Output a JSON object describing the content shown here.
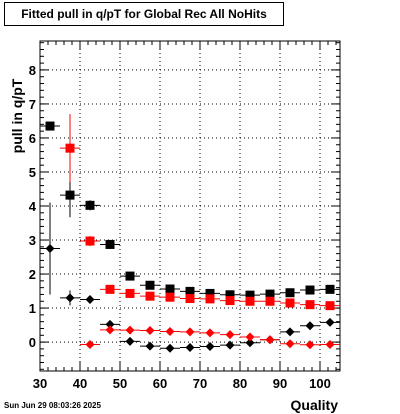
{
  "chart_data": {
    "type": "scatter",
    "title": "Fitted pull in q/pT for Global Rec All NoHits",
    "xlabel": "Quality",
    "ylabel": "pull in q/pT",
    "xlim": [
      30,
      105
    ],
    "ylim": [
      -0.85,
      8.85
    ],
    "xticks": [
      30,
      40,
      50,
      60,
      70,
      80,
      90,
      100
    ],
    "yticks": [
      0,
      1,
      2,
      3,
      4,
      5,
      6,
      7,
      8
    ],
    "grid": true,
    "x_halfwidth": 2.5,
    "series": [
      {
        "color": "#000000",
        "marker": "square",
        "points": [
          {
            "x": 32.5,
            "y": 6.35,
            "err": 0
          },
          {
            "x": 37.5,
            "y": 4.32,
            "err": 0.65
          },
          {
            "x": 42.5,
            "y": 4.02,
            "err": 0.15
          },
          {
            "x": 47.5,
            "y": 2.87,
            "err": 0.08
          },
          {
            "x": 52.5,
            "y": 1.94,
            "err": 0.05
          },
          {
            "x": 57.5,
            "y": 1.67,
            "err": 0.04
          },
          {
            "x": 62.5,
            "y": 1.56,
            "err": 0.04
          },
          {
            "x": 67.5,
            "y": 1.49,
            "err": 0.03
          },
          {
            "x": 72.5,
            "y": 1.43,
            "err": 0.03
          },
          {
            "x": 77.5,
            "y": 1.39,
            "err": 0.03
          },
          {
            "x": 82.5,
            "y": 1.38,
            "err": 0.03
          },
          {
            "x": 87.5,
            "y": 1.41,
            "err": 0.03
          },
          {
            "x": 92.5,
            "y": 1.45,
            "err": 0.03
          },
          {
            "x": 97.5,
            "y": 1.53,
            "err": 0.03
          },
          {
            "x": 102.5,
            "y": 1.55,
            "err": 0.03
          }
        ]
      },
      {
        "color": "#ff0000",
        "marker": "square",
        "points": [
          {
            "x": 37.5,
            "y": 5.7,
            "err": 1.0
          },
          {
            "x": 42.5,
            "y": 2.97,
            "err": 0.15
          },
          {
            "x": 47.5,
            "y": 1.55,
            "err": 0.06
          },
          {
            "x": 52.5,
            "y": 1.43,
            "err": 0.05
          },
          {
            "x": 57.5,
            "y": 1.35,
            "err": 0.04
          },
          {
            "x": 62.5,
            "y": 1.32,
            "err": 0.04
          },
          {
            "x": 67.5,
            "y": 1.28,
            "err": 0.03
          },
          {
            "x": 72.5,
            "y": 1.27,
            "err": 0.03
          },
          {
            "x": 77.5,
            "y": 1.22,
            "err": 0.03
          },
          {
            "x": 82.5,
            "y": 1.2,
            "err": 0.03
          },
          {
            "x": 87.5,
            "y": 1.2,
            "err": 0.03
          },
          {
            "x": 92.5,
            "y": 1.15,
            "err": 0.03
          },
          {
            "x": 97.5,
            "y": 1.1,
            "err": 0.03
          },
          {
            "x": 102.5,
            "y": 1.07,
            "err": 0.03
          }
        ]
      },
      {
        "color": "#000000",
        "marker": "diamond",
        "points": [
          {
            "x": 32.5,
            "y": 2.75,
            "err": 1.35
          },
          {
            "x": 37.5,
            "y": 1.3,
            "err": 0.22
          },
          {
            "x": 42.5,
            "y": 1.25,
            "err": 0.08
          },
          {
            "x": 47.5,
            "y": 0.52,
            "err": 0.05
          },
          {
            "x": 52.5,
            "y": 0.02,
            "err": 0.03
          },
          {
            "x": 57.5,
            "y": -0.12,
            "err": 0.03
          },
          {
            "x": 62.5,
            "y": -0.18,
            "err": 0.03
          },
          {
            "x": 67.5,
            "y": -0.16,
            "err": 0.03
          },
          {
            "x": 72.5,
            "y": -0.13,
            "err": 0.03
          },
          {
            "x": 77.5,
            "y": -0.09,
            "err": 0.03
          },
          {
            "x": 82.5,
            "y": -0.02,
            "err": 0.03
          },
          {
            "x": 87.5,
            "y": 0.07,
            "err": 0.03
          },
          {
            "x": 92.5,
            "y": 0.3,
            "err": 0.03
          },
          {
            "x": 97.5,
            "y": 0.48,
            "err": 0.03
          },
          {
            "x": 102.5,
            "y": 0.58,
            "err": 0.03
          }
        ]
      },
      {
        "color": "#ff0000",
        "marker": "diamond",
        "points": [
          {
            "x": 42.5,
            "y": -0.07,
            "err": 0.1
          },
          {
            "x": 47.5,
            "y": 0.36,
            "err": 0.05
          },
          {
            "x": 52.5,
            "y": 0.35,
            "err": 0.04
          },
          {
            "x": 57.5,
            "y": 0.34,
            "err": 0.03
          },
          {
            "x": 62.5,
            "y": 0.31,
            "err": 0.03
          },
          {
            "x": 67.5,
            "y": 0.3,
            "err": 0.03
          },
          {
            "x": 72.5,
            "y": 0.27,
            "err": 0.03
          },
          {
            "x": 77.5,
            "y": 0.22,
            "err": 0.03
          },
          {
            "x": 82.5,
            "y": 0.15,
            "err": 0.03
          },
          {
            "x": 87.5,
            "y": 0.07,
            "err": 0.03
          },
          {
            "x": 92.5,
            "y": -0.05,
            "err": 0.03
          },
          {
            "x": 97.5,
            "y": -0.08,
            "err": 0.03
          },
          {
            "x": 102.5,
            "y": -0.07,
            "err": 0.03
          }
        ]
      }
    ]
  },
  "footer": {
    "timestamp": "Sun Jun 29 08:03:26 2025"
  }
}
